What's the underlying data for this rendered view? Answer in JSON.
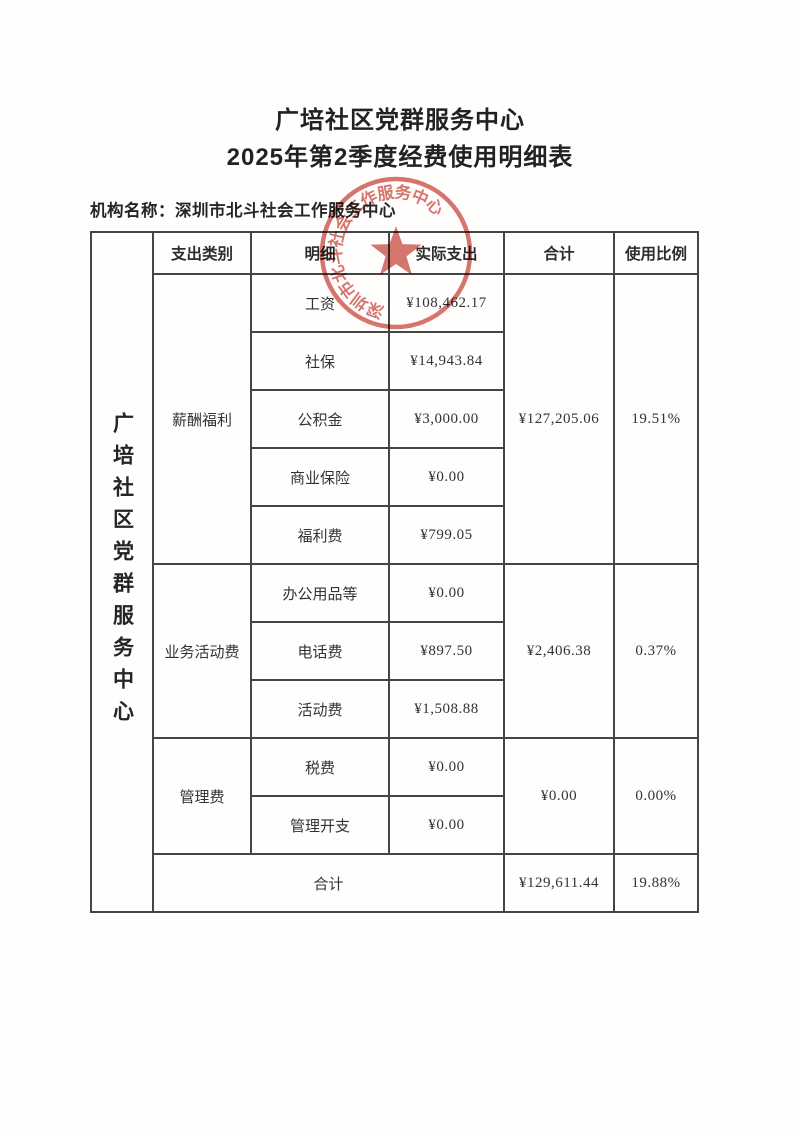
{
  "page": {
    "title_line1": "广培社区党群服务中心",
    "title_line2": "2025年第2季度经费使用明细表",
    "org_label": "机构名称：",
    "org_name": "深圳市北斗社会工作服务中心"
  },
  "seal": {
    "arc_text": "深圳市北斗社会工作服务中心",
    "color": "#cb544b"
  },
  "table": {
    "vertical_header": "广培社区党群服务中心",
    "columns": [
      "支出类别",
      "明细",
      "实际支出",
      "合计",
      "使用比例"
    ],
    "groups": [
      {
        "category": "薪酬福利",
        "items": [
          {
            "name": "工资",
            "amount": "¥108,462.17"
          },
          {
            "name": "社保",
            "amount": "¥14,943.84"
          },
          {
            "name": "公积金",
            "amount": "¥3,000.00"
          },
          {
            "name": "商业保险",
            "amount": "¥0.00"
          },
          {
            "name": "福利费",
            "amount": "¥799.05"
          }
        ],
        "subtotal": "¥127,205.06",
        "ratio": "19.51%"
      },
      {
        "category": "业务活动费",
        "items": [
          {
            "name": "办公用品等",
            "amount": "¥0.00"
          },
          {
            "name": "电话费",
            "amount": "¥897.50"
          },
          {
            "name": "活动费",
            "amount": "¥1,508.88"
          }
        ],
        "subtotal": "¥2,406.38",
        "ratio": "0.37%"
      },
      {
        "category": "管理费",
        "items": [
          {
            "name": "税费",
            "amount": "¥0.00"
          },
          {
            "name": "管理开支",
            "amount": "¥0.00"
          }
        ],
        "subtotal": "¥0.00",
        "ratio": "0.00%"
      }
    ],
    "total": {
      "label": "合计",
      "amount": "¥129,611.44",
      "ratio": "19.88%"
    }
  }
}
